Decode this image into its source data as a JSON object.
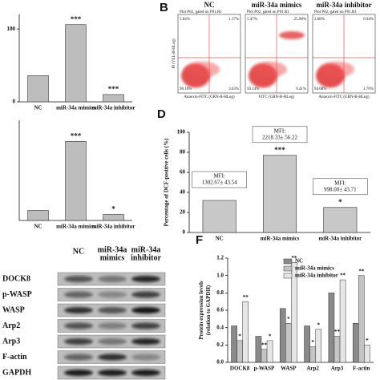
{
  "chart_data": [
    {
      "type": "bar",
      "categories": [
        "NC",
        "miR-34a mimics",
        "miR-34a inhibitor"
      ],
      "values": [
        36,
        106,
        10
      ],
      "color": "#bdbdbd",
      "annotations": [
        null,
        "***",
        "***"
      ],
      "ylim": [
        0,
        120
      ],
      "yticks": [
        0,
        100
      ]
    },
    {
      "type": "bar",
      "categories": [
        "NC",
        "miR-34a mimics",
        "miR-34a inhibitor"
      ],
      "values": [
        1,
        7.9,
        0.6
      ],
      "color": "#bdbdbd",
      "annotations": [
        null,
        "***",
        "*"
      ],
      "ylim": [
        0,
        10
      ]
    },
    {
      "type": "bar",
      "panel_label": "D",
      "y_label": "Percentage of DCF-positive cells (%)",
      "categories": [
        "NC",
        "miR-34a mimics",
        "miR-34a inhibitor"
      ],
      "values": [
        32,
        77,
        25
      ],
      "color": "#c8c8c8",
      "annotations": [
        null,
        "***",
        "*"
      ],
      "mfi_labels": [
        [
          "MFI:",
          "1302.67± 43.54"
        ],
        [
          "MFI:",
          "2218.33± 56.22"
        ],
        [
          "MFI:",
          "998.00± 43.71"
        ]
      ],
      "ylim": [
        0,
        100
      ],
      "yticks": [
        0,
        20,
        40,
        60,
        80,
        100
      ]
    },
    {
      "type": "bar",
      "panel_label": "F",
      "y_label": [
        "Protein expression levels",
        "(relation to GAPDH)"
      ],
      "categories": [
        "DOCK8",
        "p-WASP",
        "WASP",
        "Arp2",
        "Arp3",
        "F-actin"
      ],
      "series": [
        {
          "name": "NC",
          "color": "#8a8a8a",
          "values": [
            0.42,
            0.3,
            0.62,
            0.42,
            0.8,
            0.45
          ],
          "annotations": [
            null,
            null,
            null,
            null,
            null,
            null
          ]
        },
        {
          "name": "miR-34a mimics",
          "color": "#c4c4c4",
          "values": [
            0.25,
            0.15,
            0.45,
            0.18,
            0.3,
            1.0
          ],
          "annotations": [
            "*",
            "**",
            "*",
            "*",
            "**",
            "**"
          ]
        },
        {
          "name": "miR-34a inhibitor",
          "color": "#e6e6e6",
          "values": [
            0.7,
            0.25,
            1.15,
            0.38,
            0.95,
            0.2
          ],
          "annotations": [
            "**",
            "*",
            "**",
            "*",
            "**",
            "*"
          ]
        }
      ],
      "ylim": [
        0,
        1.2
      ],
      "yticks": [
        {
          "value": 0,
          "label": "0.0"
        },
        {
          "value": 0.2,
          "label": "0.2"
        },
        {
          "value": 0.4,
          "label": "0.4"
        },
        {
          "value": 0.6,
          "label": "0.6"
        },
        {
          "value": 0.8,
          "label": "0.8"
        },
        {
          "value": 1,
          "label": "1.0"
        },
        {
          "value": 1.2,
          "label": "1.2"
        }
      ]
    }
  ],
  "flow_cytometry": {
    "panel_label": "B",
    "plots": [
      {
        "title": "NC",
        "gate": "Plot P02, gated on P01.R1",
        "x_label": "Annexin-FITC (GRN-B-HLog)",
        "y_label": "PI (YEL-B-HLog)",
        "quadrants": [
          "5.04%",
          "1.17%",
          "90.16%",
          "3.63%"
        ]
      },
      {
        "title": "miR-34a mimics",
        "gate": "Plot P02, gated on P01.R1",
        "x_label": "FITC (GRN-B-HLog)",
        "quadrants": [
          "5.47%",
          "25.98%",
          "59.14%",
          "9.41%"
        ]
      },
      {
        "title": "miR-34a inhibitor",
        "gate": "Plot P02, gated on P01.R1",
        "x_label": "Annexin-FITC (GRN-B-HLog)",
        "quadrants": [
          "2.68%",
          "0.94%",
          "94.68%",
          "1.70%"
        ]
      }
    ]
  },
  "western_blot": {
    "columns": [
      [
        "NC"
      ],
      [
        "miR-34a",
        "mimics"
      ],
      [
        "miR-34a",
        "inhibitor"
      ]
    ],
    "rows": [
      "DOCK8",
      "p-WASP",
      "WASP",
      "Arp2",
      "Arp3",
      "F-actin",
      "GAPDH"
    ]
  }
}
